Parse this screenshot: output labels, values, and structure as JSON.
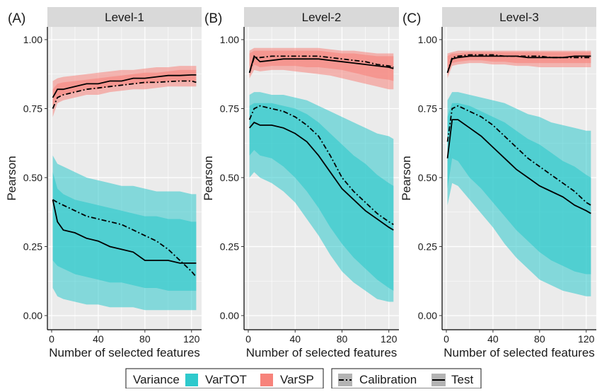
{
  "figure": {
    "legend": {
      "variance_title": "Variance",
      "var_tot": "VarTOT",
      "var_sp": "VarSP",
      "calibration": "Calibration",
      "test": "Test"
    },
    "colors": {
      "var_tot": "#2ec9cc",
      "var_sp": "#f7837b",
      "panel_bg": "#ebebeb",
      "strip_bg": "#d9d9d9",
      "line": "#000000"
    }
  },
  "chart_data": [
    {
      "type": "line",
      "panel_label": "(A)",
      "title": "Level-1",
      "xlabel": "Number of selected features",
      "ylabel": "Pearson",
      "xlim": [
        0,
        125
      ],
      "ylim": [
        0,
        1
      ],
      "xticks": [
        "0",
        "40",
        "80",
        "120"
      ],
      "yticks": [
        "0.00",
        "0.25",
        "0.50",
        "0.75",
        "1.00"
      ],
      "x": [
        1,
        5,
        10,
        20,
        30,
        40,
        50,
        60,
        70,
        80,
        90,
        100,
        110,
        120,
        124
      ],
      "series": [
        {
          "name": "VarSP",
          "line": "Test",
          "values": [
            0.79,
            0.82,
            0.82,
            0.83,
            0.84,
            0.84,
            0.85,
            0.85,
            0.86,
            0.86,
            0.865,
            0.87,
            0.87,
            0.872,
            0.872
          ]
        },
        {
          "name": "VarSP",
          "line": "Calibration",
          "values": [
            0.75,
            0.79,
            0.8,
            0.81,
            0.82,
            0.825,
            0.83,
            0.835,
            0.84,
            0.845,
            0.845,
            0.848,
            0.85,
            0.85,
            0.845
          ]
        },
        {
          "name": "VarSP",
          "band": "inner",
          "lower": [
            0.76,
            0.79,
            0.8,
            0.81,
            0.82,
            0.82,
            0.83,
            0.835,
            0.84,
            0.84,
            0.845,
            0.85,
            0.85,
            0.85,
            0.85
          ],
          "upper": [
            0.82,
            0.84,
            0.845,
            0.85,
            0.855,
            0.86,
            0.865,
            0.87,
            0.875,
            0.88,
            0.88,
            0.885,
            0.89,
            0.89,
            0.89
          ]
        },
        {
          "name": "VarSP",
          "band": "outer",
          "lower": [
            0.72,
            0.77,
            0.78,
            0.79,
            0.8,
            0.8,
            0.81,
            0.815,
            0.82,
            0.82,
            0.825,
            0.83,
            0.83,
            0.83,
            0.83
          ],
          "upper": [
            0.85,
            0.86,
            0.865,
            0.87,
            0.875,
            0.88,
            0.885,
            0.89,
            0.89,
            0.895,
            0.9,
            0.9,
            0.905,
            0.905,
            0.905
          ]
        },
        {
          "name": "VarTOT",
          "line": "Test",
          "values": [
            0.42,
            0.34,
            0.31,
            0.3,
            0.28,
            0.27,
            0.25,
            0.24,
            0.23,
            0.2,
            0.2,
            0.2,
            0.19,
            0.19,
            0.19
          ]
        },
        {
          "name": "VarTOT",
          "line": "Calibration",
          "values": [
            0.42,
            0.41,
            0.4,
            0.38,
            0.36,
            0.35,
            0.34,
            0.33,
            0.31,
            0.29,
            0.27,
            0.24,
            0.2,
            0.16,
            0.14
          ]
        },
        {
          "name": "VarTOT",
          "band": "inner",
          "lower": [
            0.2,
            0.18,
            0.17,
            0.15,
            0.14,
            0.13,
            0.12,
            0.12,
            0.11,
            0.1,
            0.1,
            0.09,
            0.09,
            0.09,
            0.09
          ],
          "upper": [
            0.52,
            0.46,
            0.44,
            0.42,
            0.41,
            0.4,
            0.39,
            0.38,
            0.37,
            0.36,
            0.36,
            0.35,
            0.35,
            0.34,
            0.34
          ]
        },
        {
          "name": "VarTOT",
          "band": "outer",
          "lower": [
            0.1,
            0.07,
            0.06,
            0.05,
            0.04,
            0.04,
            0.03,
            0.03,
            0.03,
            0.02,
            0.02,
            0.02,
            0.02,
            0.02,
            0.02
          ],
          "upper": [
            0.58,
            0.55,
            0.54,
            0.52,
            0.5,
            0.49,
            0.48,
            0.47,
            0.47,
            0.46,
            0.45,
            0.45,
            0.45,
            0.44,
            0.44
          ]
        }
      ]
    },
    {
      "type": "line",
      "panel_label": "(B)",
      "title": "Level-2",
      "xlabel": "Number of selected features",
      "ylabel": "Pearson",
      "xlim": [
        0,
        125
      ],
      "ylim": [
        0,
        1
      ],
      "xticks": [
        "0",
        "40",
        "80",
        "120"
      ],
      "yticks": [
        "0.00",
        "0.25",
        "0.50",
        "0.75",
        "1.00"
      ],
      "x": [
        1,
        5,
        10,
        20,
        30,
        40,
        50,
        60,
        70,
        80,
        90,
        100,
        110,
        120,
        124
      ],
      "series": [
        {
          "name": "VarSP",
          "line": "Test",
          "values": [
            0.88,
            0.94,
            0.92,
            0.925,
            0.93,
            0.93,
            0.93,
            0.93,
            0.925,
            0.92,
            0.915,
            0.91,
            0.905,
            0.9,
            0.895
          ]
        },
        {
          "name": "VarSP",
          "line": "Calibration",
          "values": [
            0.88,
            0.935,
            0.935,
            0.94,
            0.94,
            0.94,
            0.94,
            0.94,
            0.935,
            0.93,
            0.925,
            0.92,
            0.91,
            0.905,
            0.9
          ]
        },
        {
          "name": "VarSP",
          "band": "inner",
          "lower": [
            0.87,
            0.91,
            0.9,
            0.905,
            0.905,
            0.905,
            0.9,
            0.9,
            0.895,
            0.89,
            0.88,
            0.87,
            0.86,
            0.855,
            0.85
          ]
        },
        {
          "name": "VarSP",
          "band": "outer",
          "lower": [
            0.86,
            0.89,
            0.885,
            0.89,
            0.89,
            0.885,
            0.88,
            0.875,
            0.87,
            0.86,
            0.85,
            0.84,
            0.83,
            0.82,
            0.82
          ],
          "upper": [
            0.96,
            0.97,
            0.97,
            0.97,
            0.97,
            0.97,
            0.97,
            0.97,
            0.965,
            0.96,
            0.96,
            0.955,
            0.95,
            0.95,
            0.95
          ]
        },
        {
          "name": "VarTOT",
          "line": "Test",
          "values": [
            0.68,
            0.7,
            0.69,
            0.69,
            0.68,
            0.66,
            0.63,
            0.58,
            0.52,
            0.46,
            0.42,
            0.38,
            0.35,
            0.32,
            0.31
          ]
        },
        {
          "name": "VarTOT",
          "line": "Calibration",
          "values": [
            0.71,
            0.75,
            0.76,
            0.75,
            0.74,
            0.72,
            0.69,
            0.65,
            0.58,
            0.5,
            0.45,
            0.41,
            0.37,
            0.34,
            0.33
          ]
        },
        {
          "name": "VarTOT",
          "band": "inner",
          "lower": [
            0.58,
            0.6,
            0.58,
            0.57,
            0.54,
            0.5,
            0.45,
            0.39,
            0.32,
            0.26,
            0.21,
            0.17,
            0.13,
            0.1,
            0.09
          ],
          "upper": [
            0.76,
            0.77,
            0.77,
            0.77,
            0.76,
            0.75,
            0.73,
            0.7,
            0.66,
            0.62,
            0.58,
            0.55,
            0.51,
            0.48,
            0.47
          ]
        },
        {
          "name": "VarTOT",
          "band": "outer",
          "lower": [
            0.5,
            0.52,
            0.5,
            0.48,
            0.45,
            0.41,
            0.35,
            0.29,
            0.22,
            0.16,
            0.12,
            0.09,
            0.06,
            0.05,
            0.05
          ],
          "upper": [
            0.8,
            0.81,
            0.81,
            0.8,
            0.8,
            0.79,
            0.78,
            0.76,
            0.74,
            0.72,
            0.7,
            0.68,
            0.66,
            0.65,
            0.64
          ]
        }
      ]
    },
    {
      "type": "line",
      "panel_label": "(C)",
      "title": "Level-3",
      "xlabel": "Number of selected features",
      "ylabel": "Pearson",
      "xlim": [
        0,
        125
      ],
      "ylim": [
        0,
        1
      ],
      "xticks": [
        "0",
        "40",
        "80",
        "120"
      ],
      "yticks": [
        "0.00",
        "0.25",
        "0.50",
        "0.75",
        "1.00"
      ],
      "x": [
        1,
        5,
        10,
        20,
        30,
        40,
        50,
        60,
        70,
        80,
        90,
        100,
        110,
        120,
        124
      ],
      "series": [
        {
          "name": "VarSP",
          "line": "Test",
          "values": [
            0.88,
            0.93,
            0.935,
            0.94,
            0.94,
            0.94,
            0.94,
            0.94,
            0.935,
            0.935,
            0.935,
            0.935,
            0.94,
            0.94,
            0.94
          ]
        },
        {
          "name": "VarSP",
          "line": "Calibration",
          "values": [
            0.88,
            0.935,
            0.94,
            0.945,
            0.945,
            0.945,
            0.94,
            0.94,
            0.94,
            0.94,
            0.935,
            0.935,
            0.935,
            0.935,
            0.935
          ]
        },
        {
          "name": "VarSP",
          "band": "inner",
          "lower": [
            0.87,
            0.915,
            0.92,
            0.925,
            0.925,
            0.92,
            0.92,
            0.915,
            0.915,
            0.915,
            0.915,
            0.915,
            0.915,
            0.915,
            0.915
          ],
          "upper": [
            0.94,
            0.95,
            0.95,
            0.955,
            0.955,
            0.955,
            0.955,
            0.955,
            0.955,
            0.955,
            0.955,
            0.955,
            0.955,
            0.955,
            0.955
          ]
        },
        {
          "name": "VarSP",
          "band": "outer",
          "lower": [
            0.86,
            0.905,
            0.91,
            0.915,
            0.915,
            0.91,
            0.91,
            0.905,
            0.905,
            0.9,
            0.9,
            0.9,
            0.9,
            0.9,
            0.9
          ],
          "upper": [
            0.95,
            0.955,
            0.96,
            0.96,
            0.96,
            0.96,
            0.96,
            0.96,
            0.96,
            0.96,
            0.96,
            0.96,
            0.96,
            0.96,
            0.96
          ]
        },
        {
          "name": "VarTOT",
          "line": "Test",
          "values": [
            0.57,
            0.71,
            0.71,
            0.68,
            0.65,
            0.61,
            0.57,
            0.53,
            0.5,
            0.47,
            0.45,
            0.43,
            0.4,
            0.38,
            0.37
          ]
        },
        {
          "name": "VarTOT",
          "line": "Calibration",
          "values": [
            0.63,
            0.75,
            0.76,
            0.74,
            0.72,
            0.69,
            0.65,
            0.61,
            0.57,
            0.54,
            0.51,
            0.48,
            0.45,
            0.41,
            0.4
          ]
        },
        {
          "name": "VarTOT",
          "band": "inner",
          "lower": [
            0.46,
            0.57,
            0.56,
            0.5,
            0.46,
            0.41,
            0.36,
            0.31,
            0.27,
            0.23,
            0.2,
            0.18,
            0.16,
            0.15,
            0.15
          ],
          "upper": [
            0.72,
            0.77,
            0.77,
            0.76,
            0.74,
            0.72,
            0.7,
            0.67,
            0.64,
            0.62,
            0.59,
            0.56,
            0.54,
            0.51,
            0.5
          ]
        },
        {
          "name": "VarTOT",
          "band": "outer",
          "lower": [
            0.4,
            0.48,
            0.47,
            0.42,
            0.37,
            0.32,
            0.26,
            0.21,
            0.17,
            0.13,
            0.11,
            0.09,
            0.08,
            0.07,
            0.07
          ],
          "upper": [
            0.78,
            0.81,
            0.81,
            0.8,
            0.79,
            0.78,
            0.77,
            0.75,
            0.73,
            0.72,
            0.7,
            0.69,
            0.68,
            0.67,
            0.67
          ]
        }
      ]
    }
  ]
}
